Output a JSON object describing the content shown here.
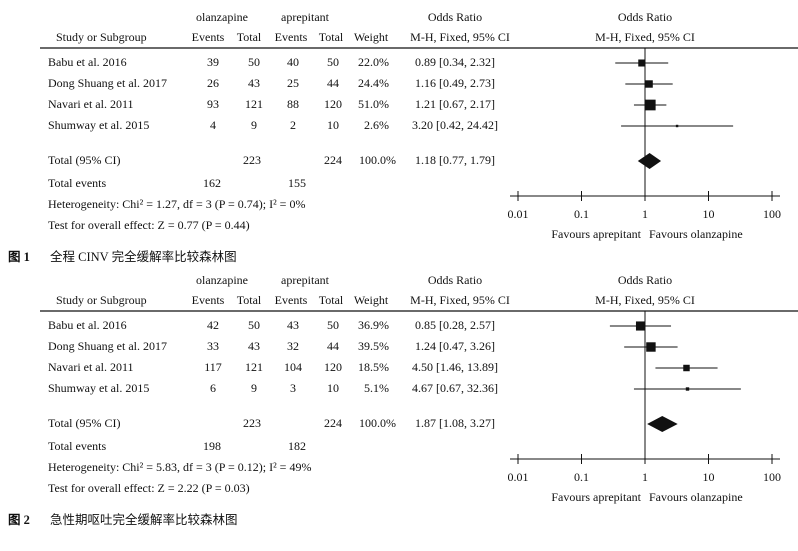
{
  "figures": [
    {
      "header": {
        "group1": "olanzapine",
        "group2": "aprepitant",
        "study": "Study or Subgroup",
        "events1": "Events",
        "total1": "Total",
        "events2": "Events",
        "total2": "Total",
        "weight": "Weight",
        "or_title": "Odds Ratio",
        "or_method": "M-H, Fixed, 95% CI",
        "plot_title": "Odds Ratio",
        "plot_method": "M-H, Fixed, 95% CI"
      },
      "studies": [
        {
          "name": "Babu et al. 2016",
          "e1": 39,
          "t1": 50,
          "e2": 40,
          "t2": 50,
          "weight": 22.0,
          "weight_label": "22.0%",
          "ci": "0.89 [0.34, 2.32]",
          "or": 0.89,
          "lo": 0.34,
          "hi": 2.32
        },
        {
          "name": "Dong Shuang et al. 2017",
          "e1": 26,
          "t1": 43,
          "e2": 25,
          "t2": 44,
          "weight": 24.4,
          "weight_label": "24.4%",
          "ci": "1.16 [0.49, 2.73]",
          "or": 1.16,
          "lo": 0.49,
          "hi": 2.73
        },
        {
          "name": "Navari et al. 2011",
          "e1": 93,
          "t1": 121,
          "e2": 88,
          "t2": 120,
          "weight": 51.0,
          "weight_label": "51.0%",
          "ci": "1.21 [0.67, 2.17]",
          "or": 1.21,
          "lo": 0.67,
          "hi": 2.17
        },
        {
          "name": "Shumway et al. 2015",
          "e1": 4,
          "t1": 9,
          "e2": 2,
          "t2": 10,
          "weight": 2.6,
          "weight_label": "2.6%",
          "ci": "3.20 [0.42, 24.42]",
          "or": 3.2,
          "lo": 0.42,
          "hi": 24.42
        }
      ],
      "total": {
        "label": "Total (95% CI)",
        "t1": 223,
        "t2": 224,
        "weight_label": "100.0%",
        "ci": "1.18 [0.77, 1.79]",
        "or": 1.18,
        "lo": 0.77,
        "hi": 1.79
      },
      "events": {
        "label": "Total events",
        "e1": 162,
        "e2": 155
      },
      "heterogeneity": "Heterogeneity: Chi² = 1.27, df = 3 (P = 0.74); I² = 0%",
      "overall": "Test for overall effect: Z = 0.77 (P = 0.44)",
      "axis": {
        "log": true,
        "xlim": [
          0.01,
          100
        ],
        "xticks": [
          0.01,
          0.1,
          1,
          10,
          100
        ]
      },
      "favours_left": "Favours aprepitant",
      "favours_right": "Favours olanzapine",
      "caption_label": "图 1",
      "caption": "全程 CINV 完全缓解率比较森林图"
    },
    {
      "header": {
        "group1": "olanzapine",
        "group2": "aprepitant",
        "study": "Study or Subgroup",
        "events1": "Events",
        "total1": "Total",
        "events2": "Events",
        "total2": "Total",
        "weight": "Weight",
        "or_title": "Odds Ratio",
        "or_method": "M-H, Fixed, 95% CI",
        "plot_title": "Odds Ratio",
        "plot_method": "M-H, Fixed, 95% CI"
      },
      "studies": [
        {
          "name": "Babu et al. 2016",
          "e1": 42,
          "t1": 50,
          "e2": 43,
          "t2": 50,
          "weight": 36.9,
          "weight_label": "36.9%",
          "ci": "0.85 [0.28, 2.57]",
          "or": 0.85,
          "lo": 0.28,
          "hi": 2.57
        },
        {
          "name": "Dong Shuang et al. 2017",
          "e1": 33,
          "t1": 43,
          "e2": 32,
          "t2": 44,
          "weight": 39.5,
          "weight_label": "39.5%",
          "ci": "1.24 [0.47, 3.26]",
          "or": 1.24,
          "lo": 0.47,
          "hi": 3.26
        },
        {
          "name": "Navari et al. 2011",
          "e1": 117,
          "t1": 121,
          "e2": 104,
          "t2": 120,
          "weight": 18.5,
          "weight_label": "18.5%",
          "ci": "4.50 [1.46, 13.89]",
          "or": 4.5,
          "lo": 1.46,
          "hi": 13.89
        },
        {
          "name": "Shumway et al. 2015",
          "e1": 6,
          "t1": 9,
          "e2": 3,
          "t2": 10,
          "weight": 5.1,
          "weight_label": "5.1%",
          "ci": "4.67 [0.67, 32.36]",
          "or": 4.67,
          "lo": 0.67,
          "hi": 32.36
        }
      ],
      "total": {
        "label": "Total (95% CI)",
        "t1": 223,
        "t2": 224,
        "weight_label": "100.0%",
        "ci": "1.87 [1.08, 3.27]",
        "or": 1.87,
        "lo": 1.08,
        "hi": 3.27
      },
      "events": {
        "label": "Total events",
        "e1": 198,
        "e2": 182
      },
      "heterogeneity": "Heterogeneity: Chi² = 5.83, df = 3 (P = 0.12); I² = 49%",
      "overall": "Test for overall effect: Z = 2.22 (P = 0.03)",
      "axis": {
        "log": true,
        "xlim": [
          0.01,
          100
        ],
        "xticks": [
          0.01,
          0.1,
          1,
          10,
          100
        ]
      },
      "favours_left": "Favours aprepitant",
      "favours_right": "Favours olanzapine",
      "caption_label": "图 2",
      "caption": "急性期呕吐完全缓解率比较森林图"
    }
  ]
}
